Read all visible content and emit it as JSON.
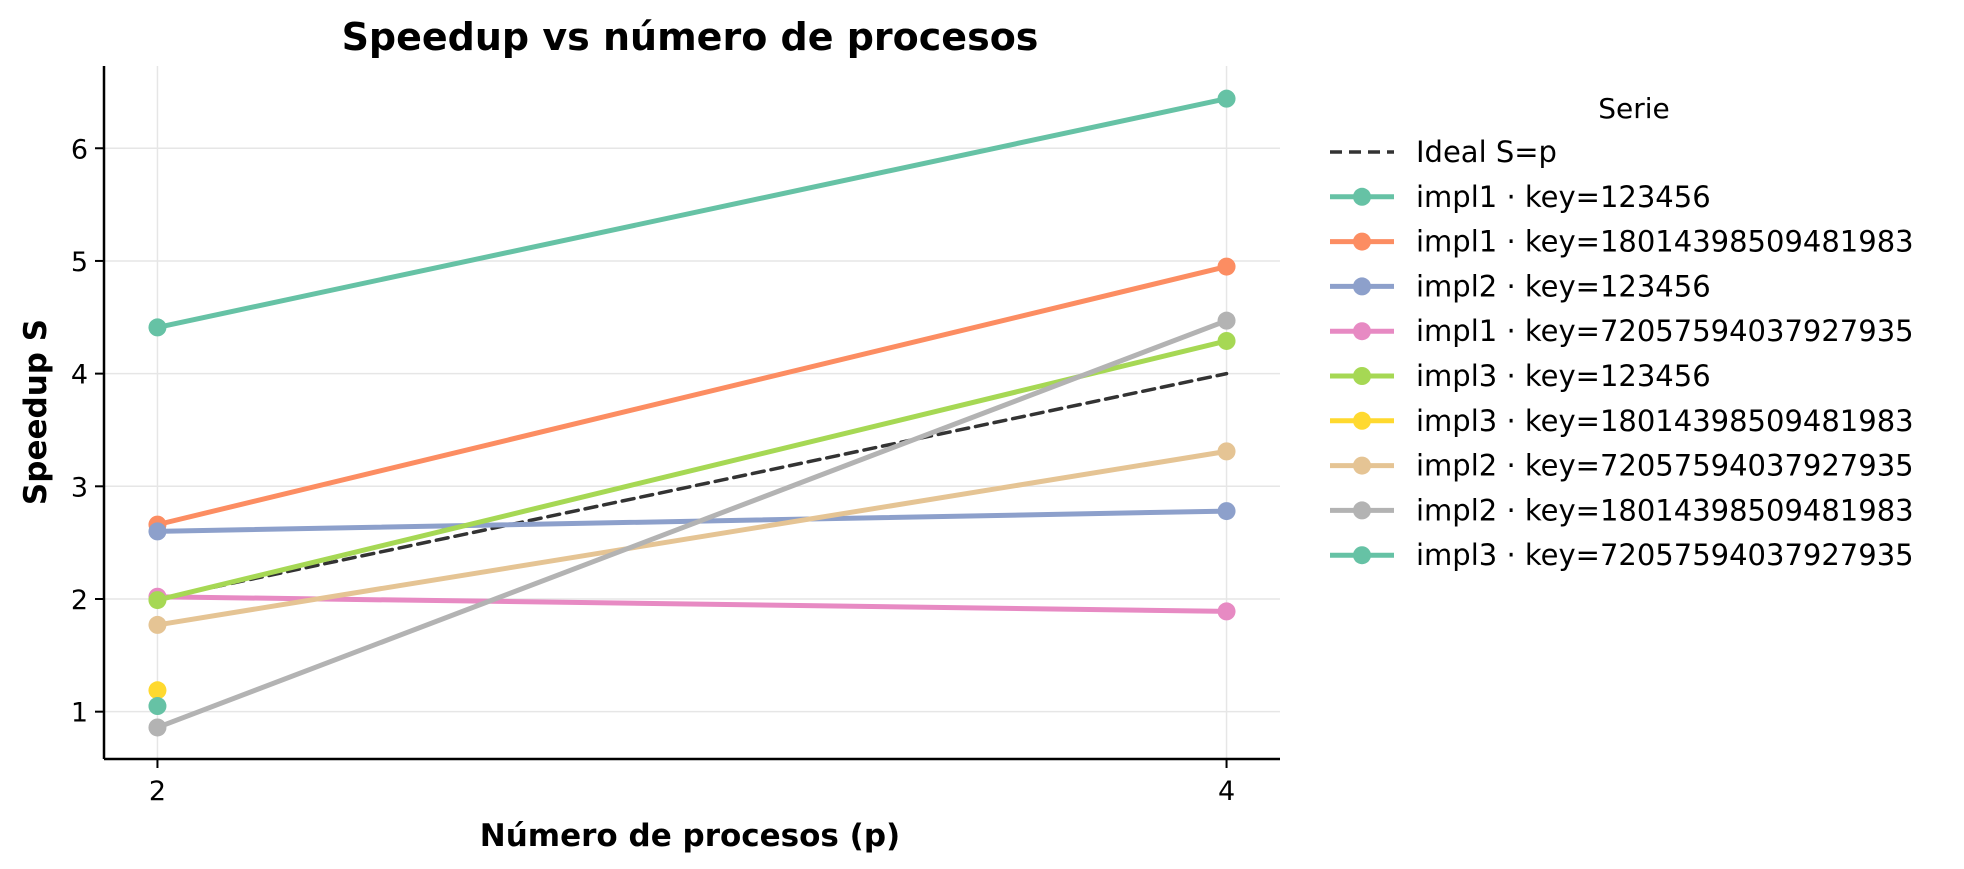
{
  "chart_data": {
    "type": "line",
    "title": "Speedup vs número de procesos",
    "xlabel": "Número de procesos (p)",
    "ylabel": "Speedup S",
    "x_ticks": [
      2,
      4
    ],
    "y_ticks": [
      1,
      2,
      3,
      4,
      5,
      6
    ],
    "xlim": [
      1.9,
      4.1
    ],
    "ylim": [
      0.58,
      6.73
    ],
    "grid": true,
    "legend": {
      "title": "Serie",
      "placement": "outside-right"
    },
    "series": [
      {
        "name": "Ideal S=p",
        "color": "#333333",
        "dashed": true,
        "markers": false,
        "x": [
          2,
          4
        ],
        "values": [
          2.0,
          4.0
        ]
      },
      {
        "name": "impl1 · key=123456",
        "color": "#66c2a5",
        "x": [
          2,
          4
        ],
        "values": [
          4.41,
          6.44
        ]
      },
      {
        "name": "impl1 · key=18014398509481983",
        "color": "#fc8d62",
        "x": [
          2,
          4
        ],
        "values": [
          2.66,
          4.95
        ]
      },
      {
        "name": "impl2 · key=123456",
        "color": "#8da0cb",
        "x": [
          2,
          4
        ],
        "values": [
          2.6,
          2.78
        ]
      },
      {
        "name": "impl1 · key=72057594037927935",
        "color": "#e78ac3",
        "x": [
          2,
          4
        ],
        "values": [
          2.02,
          1.89
        ]
      },
      {
        "name": "impl3 · key=123456",
        "color": "#a6d854",
        "x": [
          2,
          4
        ],
        "values": [
          1.99,
          4.29
        ]
      },
      {
        "name": "impl3 · key=18014398509481983",
        "color": "#ffd92f",
        "x": [
          2
        ],
        "values": [
          1.19
        ]
      },
      {
        "name": "impl2 · key=72057594037927935",
        "color": "#e5c494",
        "x": [
          2,
          4
        ],
        "values": [
          1.77,
          3.31
        ]
      },
      {
        "name": "impl2 · key=18014398509481983",
        "color": "#b3b3b3",
        "x": [
          2,
          4
        ],
        "values": [
          0.86,
          4.47
        ]
      },
      {
        "name": "impl3 · key=72057594037927935",
        "color": "#66c2a5",
        "x": [
          2
        ],
        "values": [
          1.05
        ]
      }
    ]
  }
}
